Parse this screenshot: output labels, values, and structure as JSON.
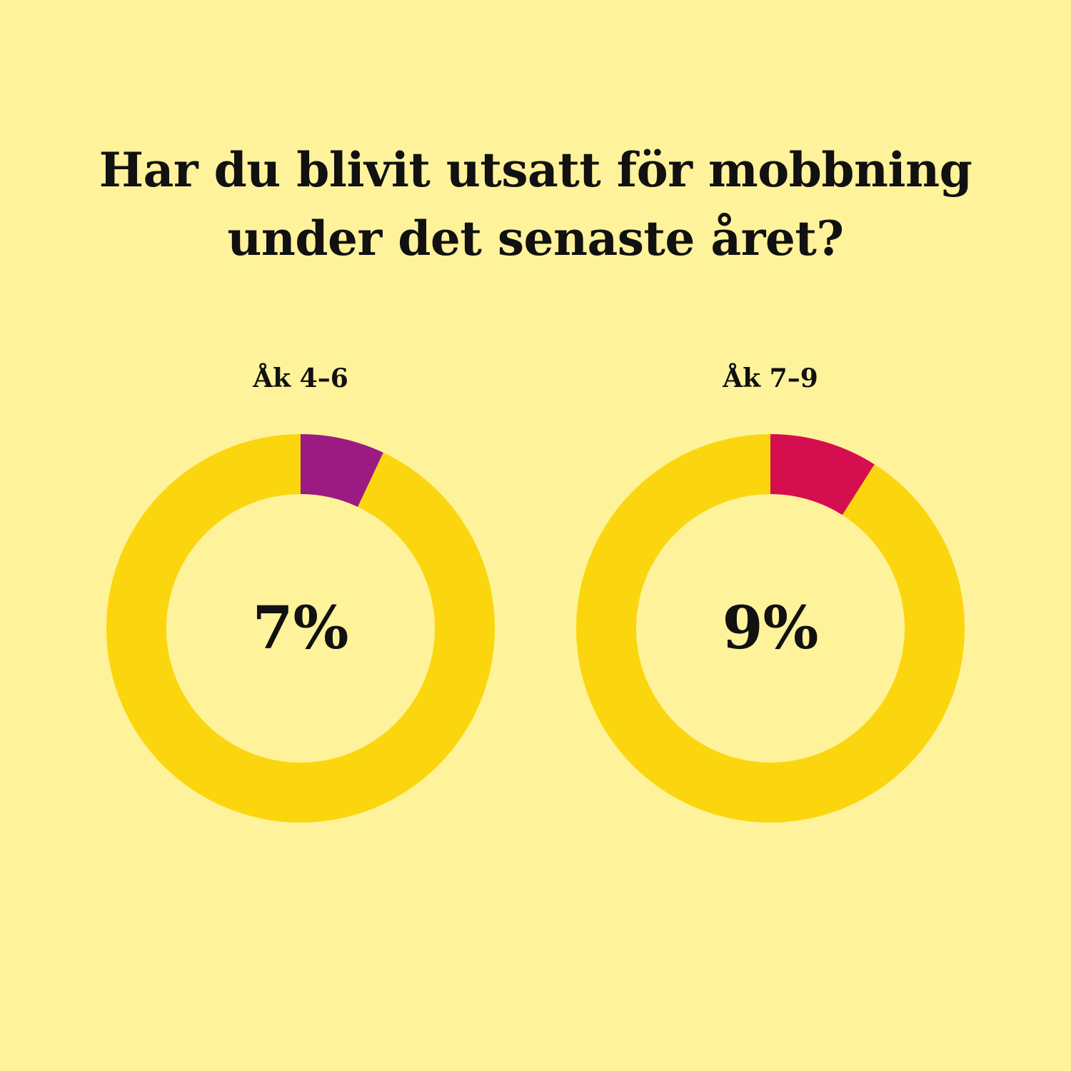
{
  "title": {
    "line1": "Har du blivit utsatt för mobbning",
    "line2": "under det senaste året?"
  },
  "colors": {
    "background": "#FEF29B",
    "ring": "#FBD60E",
    "text": "#111111"
  },
  "chart_data": [
    {
      "type": "pie",
      "label": "Åk 4–6",
      "value": 7,
      "value_label": "7%",
      "total": 100,
      "highlight_color": "#9B1B83"
    },
    {
      "type": "pie",
      "label": "Åk 7–9",
      "value": 9,
      "value_label": "9%",
      "total": 100,
      "highlight_color": "#D50F4F"
    }
  ]
}
